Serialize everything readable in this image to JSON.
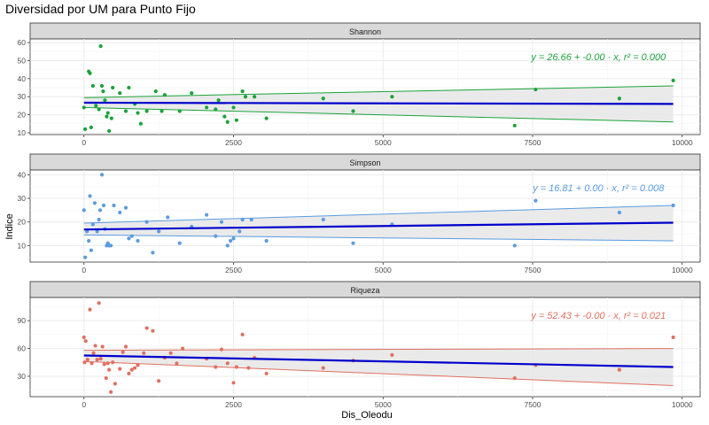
{
  "title": "Diversidad por UM para Punto Fijo",
  "xlabel": "Dis_Oleodu",
  "ylabel": "Indice",
  "colors": {
    "regression_line": "#0000cc",
    "band_fill": "#e6e6e6",
    "strip_fill": "#d9d9d9",
    "grid": "#ebebeb"
  },
  "chart_data": [
    {
      "type": "scatter",
      "facet": "Shannon",
      "color": "#1aa33a",
      "annotation": {
        "y_part": "y = 26.66 + -0.00 · x,",
        "r2_part": "r² = 0.000"
      },
      "xlim": [
        -900,
        10300
      ],
      "ylim": [
        9,
        62
      ],
      "x_ticks": [
        0,
        2500,
        5000,
        7500,
        10000
      ],
      "y_ticks": [
        10,
        20,
        30,
        40,
        50,
        60
      ],
      "regression": {
        "x": [
          0,
          9850
        ],
        "y": [
          26.66,
          26.0
        ],
        "lower": [
          24.0,
          16.0
        ],
        "upper": [
          29.5,
          36.0
        ]
      },
      "x": [
        0,
        20,
        80,
        100,
        120,
        150,
        200,
        250,
        280,
        300,
        320,
        350,
        380,
        400,
        420,
        460,
        480,
        600,
        700,
        750,
        850,
        900,
        950,
        1050,
        1200,
        1300,
        1350,
        1600,
        1800,
        2050,
        2200,
        2250,
        2350,
        2400,
        2500,
        2550,
        2650,
        2700,
        2850,
        3050,
        4000,
        4500,
        5150,
        7200,
        7550,
        8950,
        9850
      ],
      "y": [
        24,
        12,
        44,
        43,
        13,
        36,
        25,
        23,
        58,
        36,
        33,
        28,
        19,
        21,
        11,
        18,
        35,
        32,
        22,
        35,
        26,
        21,
        15,
        22,
        33,
        22,
        31,
        22,
        32,
        24,
        23,
        28,
        19,
        16,
        24,
        17,
        33,
        30,
        30,
        18,
        29,
        22,
        30,
        14,
        34,
        29,
        39
      ]
    },
    {
      "type": "scatter",
      "facet": "Simpson",
      "color": "#5b9be0",
      "annotation": {
        "y_part": "y = 16.81 + 0.00 · x,",
        "r2_part": "r² = 0.008"
      },
      "xlim": [
        -900,
        10300
      ],
      "ylim": [
        3,
        42
      ],
      "x_ticks": [
        0,
        2500,
        5000,
        7500,
        10000
      ],
      "y_ticks": [
        10,
        20,
        30,
        40
      ],
      "regression": {
        "x": [
          0,
          9850
        ],
        "y": [
          16.81,
          19.7
        ],
        "lower": [
          14.5,
          12.0
        ],
        "upper": [
          19.5,
          27.0
        ]
      },
      "x": [
        0,
        20,
        50,
        80,
        100,
        120,
        150,
        180,
        220,
        250,
        270,
        300,
        330,
        350,
        380,
        400,
        420,
        450,
        500,
        600,
        700,
        750,
        800,
        900,
        1050,
        1150,
        1250,
        1400,
        1600,
        1800,
        2050,
        2200,
        2300,
        2400,
        2450,
        2500,
        2600,
        2650,
        2800,
        3050,
        4000,
        4500,
        5150,
        7200,
        7550,
        8950,
        9850
      ],
      "y": [
        25,
        5,
        16,
        12,
        31,
        8,
        19,
        28,
        16,
        21,
        25,
        40,
        27,
        17,
        10,
        11,
        10,
        10,
        27,
        24,
        26,
        13,
        14,
        12,
        20,
        7,
        16,
        22,
        11,
        18,
        23,
        14,
        20,
        10,
        12,
        13,
        16,
        21,
        21,
        12,
        21,
        11,
        19,
        10,
        29,
        24,
        27
      ]
    },
    {
      "type": "scatter",
      "facet": "Riqueza",
      "color": "#e07060",
      "annotation": {
        "y_part": "y = 52.43 + -0.00 · x,",
        "r2_part": "r² = 0.021"
      },
      "xlim": [
        -900,
        10300
      ],
      "ylim": [
        8,
        115
      ],
      "x_ticks": [
        0,
        2500,
        5000,
        7500,
        10000
      ],
      "y_ticks": [
        30,
        60,
        90
      ],
      "regression": {
        "x": [
          0,
          9850
        ],
        "y": [
          52.43,
          40.0
        ],
        "lower": [
          46.0,
          20.0
        ],
        "upper": [
          58.0,
          60.0
        ]
      },
      "x": [
        0,
        10,
        30,
        60,
        100,
        130,
        160,
        190,
        220,
        250,
        280,
        310,
        340,
        370,
        400,
        420,
        450,
        480,
        520,
        600,
        650,
        700,
        750,
        800,
        850,
        900,
        1000,
        1050,
        1150,
        1250,
        1350,
        1450,
        1550,
        1650,
        2050,
        2200,
        2300,
        2400,
        2500,
        2550,
        2650,
        2750,
        2850,
        3050,
        4000,
        4500,
        5150,
        7200,
        7550,
        8950,
        9850
      ],
      "y": [
        72,
        45,
        68,
        48,
        102,
        44,
        55,
        63,
        48,
        109,
        49,
        62,
        43,
        28,
        44,
        37,
        13,
        45,
        22,
        38,
        56,
        62,
        33,
        37,
        39,
        42,
        55,
        82,
        79,
        25,
        50,
        55,
        44,
        60,
        49,
        40,
        59,
        44,
        23,
        40,
        75,
        39,
        50,
        33,
        39,
        47,
        53,
        28,
        42,
        37,
        72
      ]
    }
  ]
}
